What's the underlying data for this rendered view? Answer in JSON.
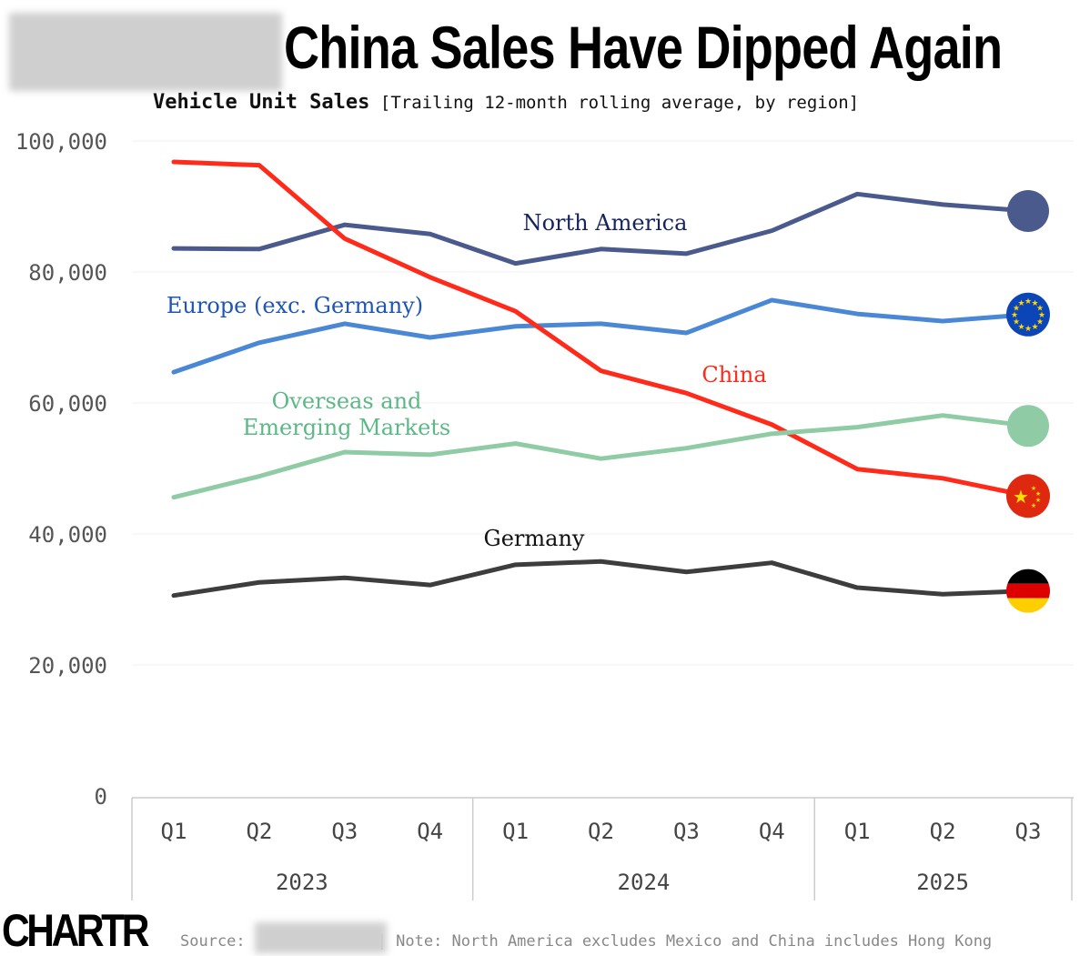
{
  "header": {
    "title": "China Sales Have Dipped Again",
    "subtitle_bold": "Vehicle Unit Sales",
    "subtitle_rest": "[Trailing 12-month rolling average, by region]"
  },
  "footer": {
    "logo": "CHARTR",
    "source_label": "Source:",
    "note": "| Note: North America excludes Mexico and China includes Hong Kong"
  },
  "chart_data": {
    "type": "line",
    "title": "China Sales Have Dipped Again",
    "ylabel": "Vehicle Unit Sales",
    "ylim": [
      0,
      100000
    ],
    "yticks": [
      0,
      20000,
      40000,
      60000,
      80000,
      100000
    ],
    "ytick_labels": [
      "0",
      "20,000",
      "40,000",
      "60,000",
      "80,000",
      "100,000"
    ],
    "grid": true,
    "categories": [
      "Q1",
      "Q2",
      "Q3",
      "Q4",
      "Q1",
      "Q2",
      "Q3",
      "Q4",
      "Q1",
      "Q2",
      "Q3"
    ],
    "years": [
      {
        "label": "2023",
        "span": 4
      },
      {
        "label": "2024",
        "span": 4
      },
      {
        "label": "2025",
        "span": 3
      }
    ],
    "series": [
      {
        "name": "North America",
        "color": "#4a5a8c",
        "label_color": "#15235e",
        "end_marker": "circle",
        "values": [
          83600,
          83500,
          87200,
          85800,
          81300,
          83500,
          82800,
          86300,
          91900,
          90300,
          89300
        ]
      },
      {
        "name": "Europe (exc. Germany)",
        "color": "#4a88d6",
        "label_color": "#1f55b5",
        "end_marker": "eu-flag",
        "values": [
          64700,
          69200,
          72100,
          70000,
          71700,
          72100,
          70700,
          75700,
          73600,
          72500,
          73500
        ]
      },
      {
        "name": "China",
        "color": "#ff2a1a",
        "label_color": "#ff2a1a",
        "end_marker": "china-flag",
        "values": [
          96800,
          96300,
          85100,
          79200,
          74000,
          64900,
          61500,
          56700,
          49900,
          48500,
          45800
        ]
      },
      {
        "name": "Overseas and Emerging Markets",
        "label_lines": [
          "Overseas and",
          "Emerging Markets"
        ],
        "color": "#8fcca6",
        "label_color": "#5cb886",
        "end_marker": "circle",
        "values": [
          45600,
          48800,
          52500,
          52100,
          53800,
          51500,
          53100,
          55300,
          56300,
          58100,
          56500
        ]
      },
      {
        "name": "Germany",
        "color": "#3d3d3d",
        "label_color": "#111111",
        "end_marker": "germany-flag",
        "values": [
          30600,
          32600,
          33300,
          32200,
          35300,
          35800,
          34200,
          35600,
          31800,
          30800,
          31300
        ]
      }
    ]
  }
}
